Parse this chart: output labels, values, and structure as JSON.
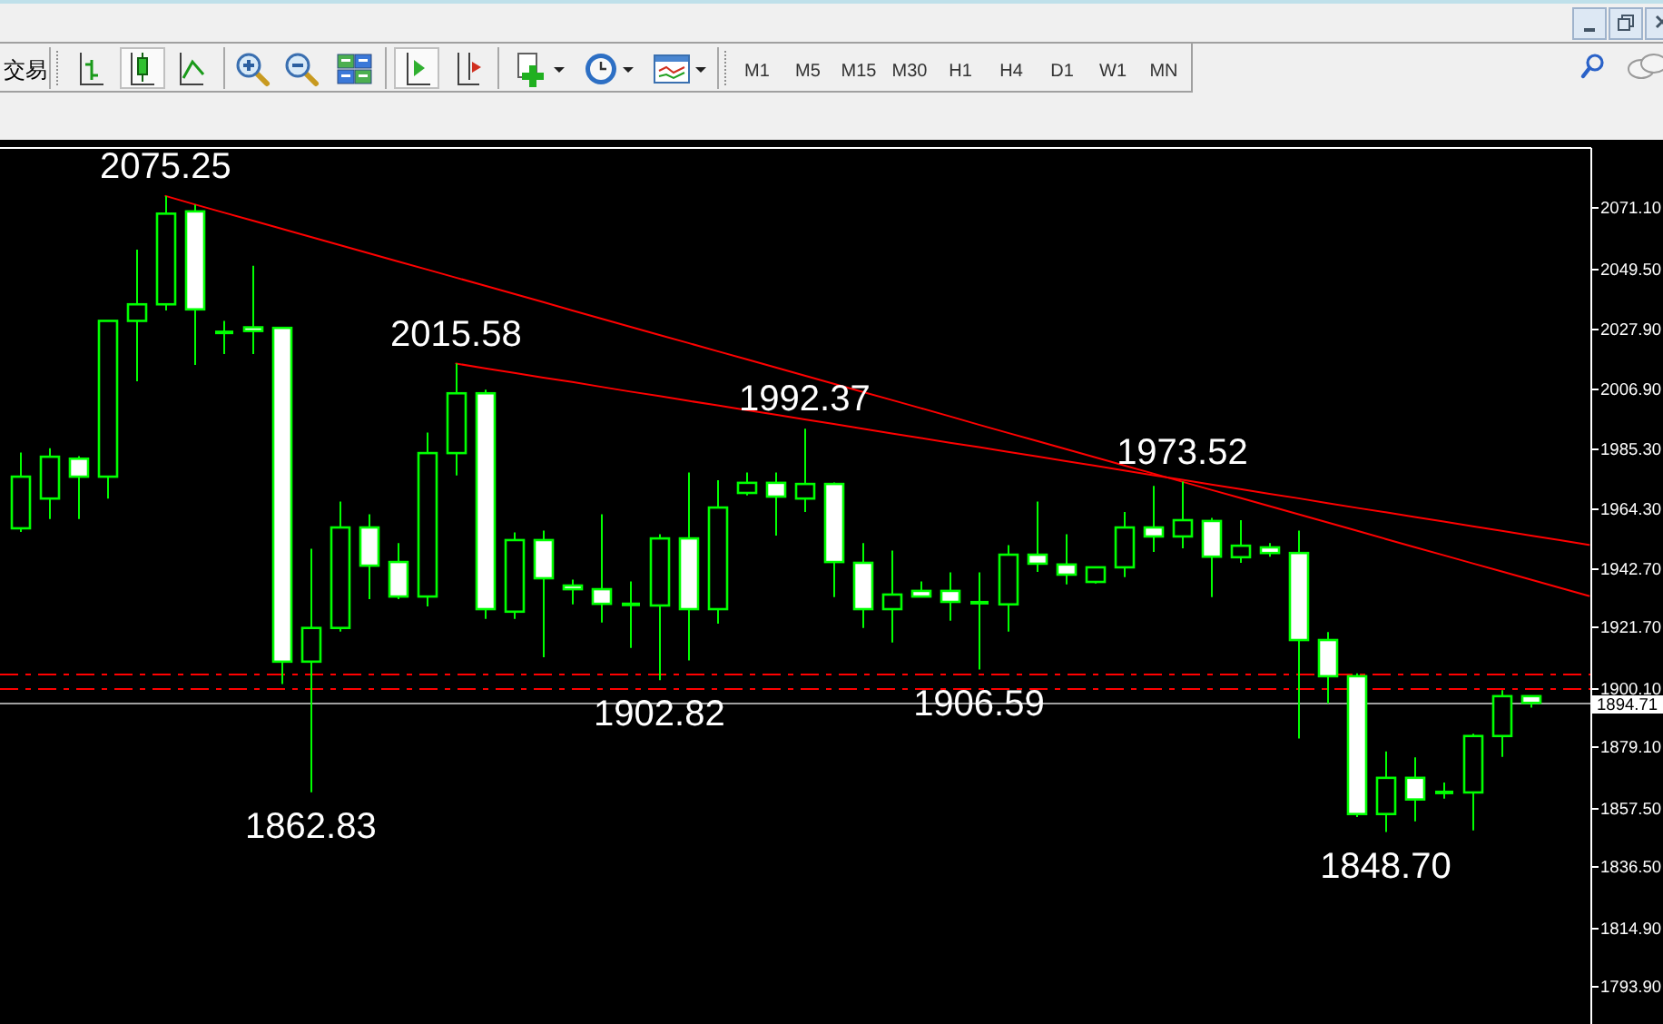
{
  "chart_data": {
    "type": "candlestick",
    "color": "#00ff00",
    "categories": [
      null,
      null,
      null,
      null,
      null,
      null,
      null,
      null,
      null,
      null,
      null,
      null,
      null,
      null,
      null,
      null,
      null,
      null,
      null,
      null,
      null,
      null,
      null,
      null,
      null,
      null,
      null,
      null,
      null,
      null,
      null,
      null,
      null,
      null,
      null,
      null,
      null,
      null,
      null,
      null,
      null,
      null,
      null,
      null,
      null,
      null,
      null,
      null,
      null,
      null,
      null,
      null,
      null,
      null,
      null
    ],
    "ohlc": [
      [
        1956.9,
        1983.9,
        1955.6,
        1975.3
      ],
      [
        1967.5,
        1985.4,
        1960.2,
        1982.4
      ],
      [
        1981.7,
        1982.6,
        1960.2,
        1975.3
      ],
      [
        1975.3,
        2030.8,
        1967.5,
        2030.8
      ],
      [
        2030.8,
        2056.2,
        2009.3,
        2036.7
      ],
      [
        2036.7,
        2075.25,
        2034.5,
        2069.0
      ],
      [
        2069.8,
        2072.2,
        2015.1,
        2034.9
      ],
      [
        2026.7,
        2030.8,
        2019.0,
        2026.7
      ],
      [
        2028.5,
        2050.4,
        2019.0,
        2027.2
      ],
      [
        2028.3,
        2028.3,
        1901.4,
        1909.4
      ],
      [
        1909.4,
        1949.6,
        1862.83,
        1921.4
      ],
      [
        1921.4,
        1966.4,
        1920.1,
        1957.2
      ],
      [
        1957.2,
        1961.9,
        1931.7,
        1943.6
      ],
      [
        1944.9,
        1951.6,
        1931.7,
        1932.6
      ],
      [
        1932.6,
        1991.0,
        1929.1,
        1983.7
      ],
      [
        1983.7,
        2015.58,
        1975.7,
        2005.0
      ],
      [
        2005.0,
        2006.3,
        1924.6,
        1928.1
      ],
      [
        1927.2,
        1955.4,
        1924.6,
        1952.7
      ],
      [
        1952.7,
        1956.1,
        1911.0,
        1939.1
      ],
      [
        1936.5,
        1938.6,
        1929.8,
        1935.2
      ],
      [
        1935.2,
        1961.9,
        1923.3,
        1930.0
      ],
      [
        1929.8,
        1938.0,
        1914.3,
        1929.8
      ],
      [
        1929.4,
        1954.8,
        1902.82,
        1953.3
      ],
      [
        1953.3,
        1976.8,
        1909.8,
        1928.1
      ],
      [
        1928.1,
        1974.0,
        1922.9,
        1964.3
      ],
      [
        1969.5,
        1976.8,
        1968.6,
        1973.1
      ],
      [
        1973.1,
        1976.8,
        1954.3,
        1968.2
      ],
      [
        1967.5,
        1992.37,
        1962.7,
        1972.7
      ],
      [
        1972.7,
        1973.2,
        1932.4,
        1944.9
      ],
      [
        1944.6,
        1951.6,
        1921.4,
        1928.1
      ],
      [
        1928.1,
        1949.0,
        1916.2,
        1933.3
      ],
      [
        1934.6,
        1938.0,
        1932.6,
        1932.6
      ],
      [
        1934.6,
        1941.2,
        1924.0,
        1930.7
      ],
      [
        1930.4,
        1941.2,
        1906.59,
        1930.4
      ],
      [
        1929.8,
        1950.9,
        1920.1,
        1947.5
      ],
      [
        1947.5,
        1966.4,
        1941.4,
        1944.3
      ],
      [
        1944.0,
        1954.8,
        1936.9,
        1940.4
      ],
      [
        1937.8,
        1943.0,
        1937.2,
        1943.0
      ],
      [
        1943.0,
        1962.7,
        1939.5,
        1957.2
      ],
      [
        1957.2,
        1972.0,
        1948.5,
        1954.0
      ],
      [
        1954.0,
        1973.52,
        1949.8,
        1959.8
      ],
      [
        1959.5,
        1960.6,
        1932.4,
        1946.8
      ],
      [
        1946.6,
        1959.8,
        1944.6,
        1950.7
      ],
      [
        1950.1,
        1951.6,
        1946.8,
        1948.1
      ],
      [
        1948.1,
        1956.1,
        1882.0,
        1917.1
      ],
      [
        1917.1,
        1919.9,
        1894.5,
        1904.2
      ],
      [
        1904.2,
        1905.2,
        1854.0,
        1855.1
      ],
      [
        1855.1,
        1877.4,
        1848.7,
        1868.0
      ],
      [
        1868.0,
        1875.3,
        1852.5,
        1860.3
      ],
      [
        1862.8,
        1866.3,
        1860.6,
        1862.8
      ],
      [
        1862.8,
        1883.7,
        1849.3,
        1882.9
      ],
      [
        1882.9,
        1899.2,
        1875.5,
        1897.1
      ],
      [
        1897.1,
        1897.1,
        1893.0,
        1894.71
      ],
      null,
      null
    ],
    "series": [
      {
        "type": "line",
        "color": "#ff0000",
        "line_style": "solid",
        "values": [
          null,
          null,
          null,
          null,
          null,
          2075.3,
          2072.3,
          2069.4,
          2066.5,
          2063.6,
          2060.7,
          2057.8,
          2054.9,
          2052.0,
          2049.1,
          2046.2,
          2043.3,
          2040.4,
          2037.5,
          2034.5,
          2031.6,
          2028.7,
          2025.8,
          2022.9,
          2020.0,
          2017.1,
          2014.2,
          2011.3,
          2008.4,
          2005.5,
          2002.6,
          1999.7,
          1996.8,
          1993.8,
          1990.9,
          1988.0,
          1985.1,
          1982.2,
          1979.3,
          1976.4,
          1973.5,
          1970.6,
          1967.7,
          1964.8,
          1961.9,
          1959.0,
          1956.1,
          1953.1,
          1950.2,
          1947.3,
          1944.4,
          1941.5,
          1938.6,
          1935.7,
          1932.8
        ]
      },
      {
        "type": "line",
        "color": "#ff0000",
        "line_style": "solid",
        "values": [
          null,
          null,
          null,
          null,
          null,
          null,
          null,
          null,
          null,
          null,
          null,
          null,
          null,
          null,
          null,
          2015.6,
          2013.9,
          2012.3,
          2010.6,
          2009.0,
          2007.3,
          2005.6,
          2004.0,
          2002.3,
          2000.7,
          1999.0,
          1997.4,
          1995.7,
          1994.1,
          1992.4,
          1990.7,
          1989.1,
          1987.4,
          1985.8,
          1984.1,
          1982.5,
          1980.8,
          1979.2,
          1977.5,
          1975.8,
          1974.2,
          1972.5,
          1970.9,
          1969.2,
          1967.6,
          1965.9,
          1964.2,
          1962.6,
          1960.9,
          1959.3,
          1957.6,
          1956.0,
          1954.3,
          1952.7,
          1951.0
        ]
      }
    ],
    "ylim": [
      1780.3,
      2092.4
    ],
    "yticks": [
      {
        "value": 1793.9,
        "label": "1793.90"
      },
      {
        "value": 1814.9,
        "label": "1814.90"
      },
      {
        "value": 1836.5,
        "label": "1836.50"
      },
      {
        "value": 1857.5,
        "label": "1857.50"
      },
      {
        "value": 1879.1,
        "label": "1879.10"
      },
      {
        "value": 1900.1,
        "label": "1900.10"
      },
      {
        "value": 1921.7,
        "label": "1921.70"
      },
      {
        "value": 1942.7,
        "label": "1942.70"
      },
      {
        "value": 1964.3,
        "label": "1964.30"
      },
      {
        "value": 1985.3,
        "label": "1985.30"
      },
      {
        "value": 2006.9,
        "label": "2006.90"
      },
      {
        "value": 2027.9,
        "label": "2027.90"
      },
      {
        "value": 2049.5,
        "label": "2049.50"
      },
      {
        "value": 2071.1,
        "label": "2071.10"
      }
    ],
    "ref_lines": [
      {
        "axis": "y",
        "value": 1905.0,
        "color": "#ff0000",
        "line_style": "dashed"
      },
      {
        "axis": "y",
        "value": 1899.9,
        "color": "#ff0000",
        "line_style": "dashed"
      },
      {
        "axis": "y",
        "value": 1894.71,
        "label": "1894.71",
        "color": "#a0a0a0"
      }
    ],
    "annotations": [
      {
        "text": "2075.25",
        "y": 2075.25
      },
      {
        "text": "2015.58",
        "y": 2015.58
      },
      {
        "text": "1992.37",
        "y": 1992.37
      },
      {
        "text": "1973.52",
        "y": 1973.52
      },
      {
        "text": "1862.83",
        "y": 1862.83
      },
      {
        "text": "1902.82",
        "y": 1902.82
      },
      {
        "text": "1906.59",
        "y": 1906.59
      },
      {
        "text": "1848.70",
        "y": 1848.7
      },
      "交易",
      "M1",
      "M5",
      "M15",
      "M30",
      "H1",
      "H4",
      "D1",
      "W1",
      "MN"
    ]
  }
}
